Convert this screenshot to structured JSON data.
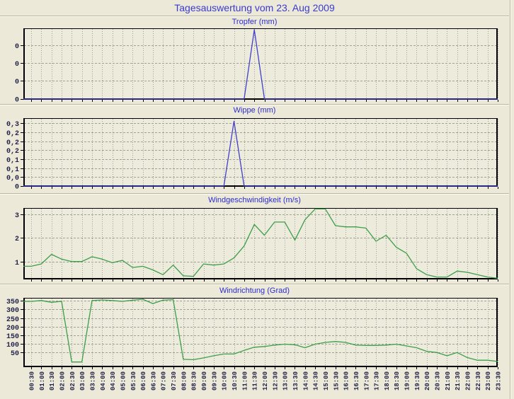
{
  "page": {
    "title": "Tagesauswertung vom 23. Aug 2009"
  },
  "colors": {
    "background": "#ece9d8",
    "plot_background": "#edebdc",
    "grid": "#a0a094",
    "title_blue": "#3a3ad0",
    "chart_title_blue": "#2d2dd0",
    "rain_line": "#4040cc",
    "wind_line": "#3d9e4a",
    "axis_label": "#23234a"
  },
  "chart_data": [
    {
      "type": "line",
      "title": "Tropfer (mm)",
      "line_color": "#4040cc",
      "x": [
        "00:30",
        "01:00",
        "01:30",
        "02:00",
        "02:30",
        "03:00",
        "03:30",
        "04:00",
        "04:30",
        "05:00",
        "05:30",
        "06:00",
        "06:30",
        "07:00",
        "07:30",
        "08:00",
        "08:30",
        "09:00",
        "09:30",
        "10:00",
        "10:30",
        "11:00",
        "11:30",
        "12:00",
        "12:30",
        "13:00",
        "13:30",
        "14:00",
        "14:30",
        "15:00",
        "15:30",
        "16:00",
        "16:30",
        "17:00",
        "17:30",
        "18:00",
        "18:30",
        "19:00",
        "19:30",
        "20:00",
        "20:30",
        "21:00",
        "21:30",
        "22:00",
        "22:30",
        "23:00",
        "23:30"
      ],
      "values": [
        0,
        0,
        0,
        0,
        0,
        0,
        0,
        0,
        0,
        0,
        0,
        0,
        0,
        0,
        0,
        0,
        0,
        0,
        0,
        0,
        0,
        0,
        0.01,
        0,
        0,
        0,
        0,
        0,
        0,
        0,
        0,
        0,
        0,
        0,
        0,
        0,
        0,
        0,
        0,
        0,
        0,
        0,
        0,
        0,
        0,
        0,
        0
      ],
      "ylim": [
        0,
        0.0102
      ],
      "ygrid": {
        "pos": [
          0.24,
          0.49,
          0.74
        ],
        "labels": [
          "0",
          "0",
          "0"
        ],
        "values": [
          0.0075,
          0.005,
          0.0025
        ]
      },
      "baseline_label": "0",
      "show_x_labels": false,
      "grid": true
    },
    {
      "type": "line",
      "title": "Wippe (mm)",
      "line_color": "#4040cc",
      "x": [
        "00:30",
        "01:00",
        "01:30",
        "02:00",
        "02:30",
        "03:00",
        "03:30",
        "04:00",
        "04:30",
        "05:00",
        "05:30",
        "06:00",
        "06:30",
        "07:00",
        "07:30",
        "08:00",
        "08:30",
        "09:00",
        "09:30",
        "10:00",
        "10:30",
        "11:00",
        "11:30",
        "12:00",
        "12:30",
        "13:00",
        "13:30",
        "14:00",
        "14:30",
        "15:00",
        "15:30",
        "16:00",
        "16:30",
        "17:00",
        "17:30",
        "18:00",
        "18:30",
        "19:00",
        "19:30",
        "20:00",
        "20:30",
        "21:00",
        "21:30",
        "22:00",
        "22:30",
        "23:00",
        "23:30"
      ],
      "values": [
        0,
        0,
        0,
        0,
        0,
        0,
        0,
        0,
        0,
        0,
        0,
        0,
        0,
        0,
        0,
        0,
        0,
        0,
        0,
        0,
        0.31,
        0,
        0,
        0,
        0,
        0,
        0,
        0,
        0,
        0,
        0,
        0,
        0,
        0,
        0,
        0,
        0,
        0,
        0,
        0,
        0,
        0,
        0,
        0,
        0,
        0,
        0
      ],
      "ylim": [
        0,
        0.325
      ],
      "ygrid": {
        "pos": [
          0.073,
          0.208,
          0.344,
          0.469,
          0.604,
          0.74,
          0.865
        ],
        "labels": [
          "0,3",
          "0,2",
          "0,2",
          "0,2",
          "0,1",
          "0,1",
          "0,0"
        ],
        "values": [
          0.3,
          0.25,
          0.2,
          0.15,
          0.1,
          0.05,
          0
        ]
      },
      "baseline_label": "0",
      "show_x_labels": false,
      "grid": true
    },
    {
      "type": "line",
      "title": "Windgeschwindigkeit (m/s)",
      "line_color": "#3d9e4a",
      "x": [
        "00:30",
        "01:00",
        "01:30",
        "02:00",
        "02:30",
        "03:00",
        "03:30",
        "04:00",
        "04:30",
        "05:00",
        "05:30",
        "06:00",
        "06:30",
        "07:00",
        "07:30",
        "08:00",
        "08:30",
        "09:00",
        "09:30",
        "10:00",
        "10:30",
        "11:00",
        "11:30",
        "12:00",
        "12:30",
        "13:00",
        "13:30",
        "14:00",
        "14:30",
        "15:00",
        "15:30",
        "16:00",
        "16:30",
        "17:00",
        "17:30",
        "18:00",
        "18:30",
        "19:00",
        "19:30",
        "20:00",
        "20:30",
        "21:00",
        "21:30",
        "22:00",
        "22:30",
        "23:00",
        "23:30"
      ],
      "values": [
        0.8,
        0.9,
        1.3,
        1.1,
        1.0,
        1.0,
        1.2,
        1.1,
        0.95,
        1.05,
        0.75,
        0.8,
        0.65,
        0.45,
        0.85,
        0.4,
        0.38,
        0.9,
        0.85,
        0.9,
        1.15,
        1.65,
        2.55,
        2.1,
        2.65,
        2.65,
        1.9,
        2.75,
        3.2,
        3.2,
        2.5,
        2.45,
        2.45,
        2.4,
        1.85,
        2.1,
        1.6,
        1.35,
        0.7,
        0.45,
        0.35,
        0.35,
        0.6,
        0.55,
        0.45,
        0.35,
        0.3
      ],
      "ylim": [
        0.28,
        3.24
      ],
      "ygrid": {
        "pos": [
          0.09,
          0.42,
          0.76
        ],
        "labels": [
          "3",
          "2",
          "1"
        ],
        "values": [
          3,
          2,
          1
        ]
      },
      "show_x_labels": false,
      "grid": true
    },
    {
      "type": "line",
      "title": "Windrichtung (Grad)",
      "line_color": "#3d9e4a",
      "x": [
        "00:30",
        "01:00",
        "01:30",
        "02:00",
        "02:30",
        "03:00",
        "03:30",
        "04:00",
        "04:30",
        "05:00",
        "05:30",
        "06:00",
        "06:30",
        "07:00",
        "07:30",
        "08:00",
        "08:30",
        "09:00",
        "09:30",
        "10:00",
        "10:30",
        "11:00",
        "11:30",
        "12:00",
        "12:30",
        "13:00",
        "13:30",
        "14:00",
        "14:30",
        "15:00",
        "15:30",
        "16:00",
        "16:30",
        "17:00",
        "17:30",
        "18:00",
        "18:30",
        "19:00",
        "19:30",
        "20:00",
        "20:30",
        "21:00",
        "21:30",
        "22:00",
        "22:30",
        "23:00",
        "23:30"
      ],
      "values": [
        345,
        350,
        340,
        345,
        5,
        5,
        350,
        353,
        350,
        345,
        352,
        357,
        333,
        352,
        355,
        20,
        18,
        28,
        40,
        50,
        50,
        70,
        88,
        92,
        100,
        105,
        102,
        85,
        105,
        115,
        120,
        115,
        100,
        98,
        98,
        100,
        105,
        95,
        85,
        65,
        58,
        40,
        58,
        30,
        15,
        15,
        8
      ],
      "ylim": [
        -20,
        365
      ],
      "ygrid": {
        "pos": [
          0.041,
          0.169,
          0.294,
          0.419,
          0.543,
          0.669,
          0.794
        ],
        "labels": [
          "350",
          "300",
          "250",
          "200",
          "150",
          "100",
          "50"
        ],
        "values": [
          350,
          300,
          250,
          200,
          150,
          100,
          50
        ]
      },
      "show_x_labels": true,
      "grid": true
    }
  ]
}
